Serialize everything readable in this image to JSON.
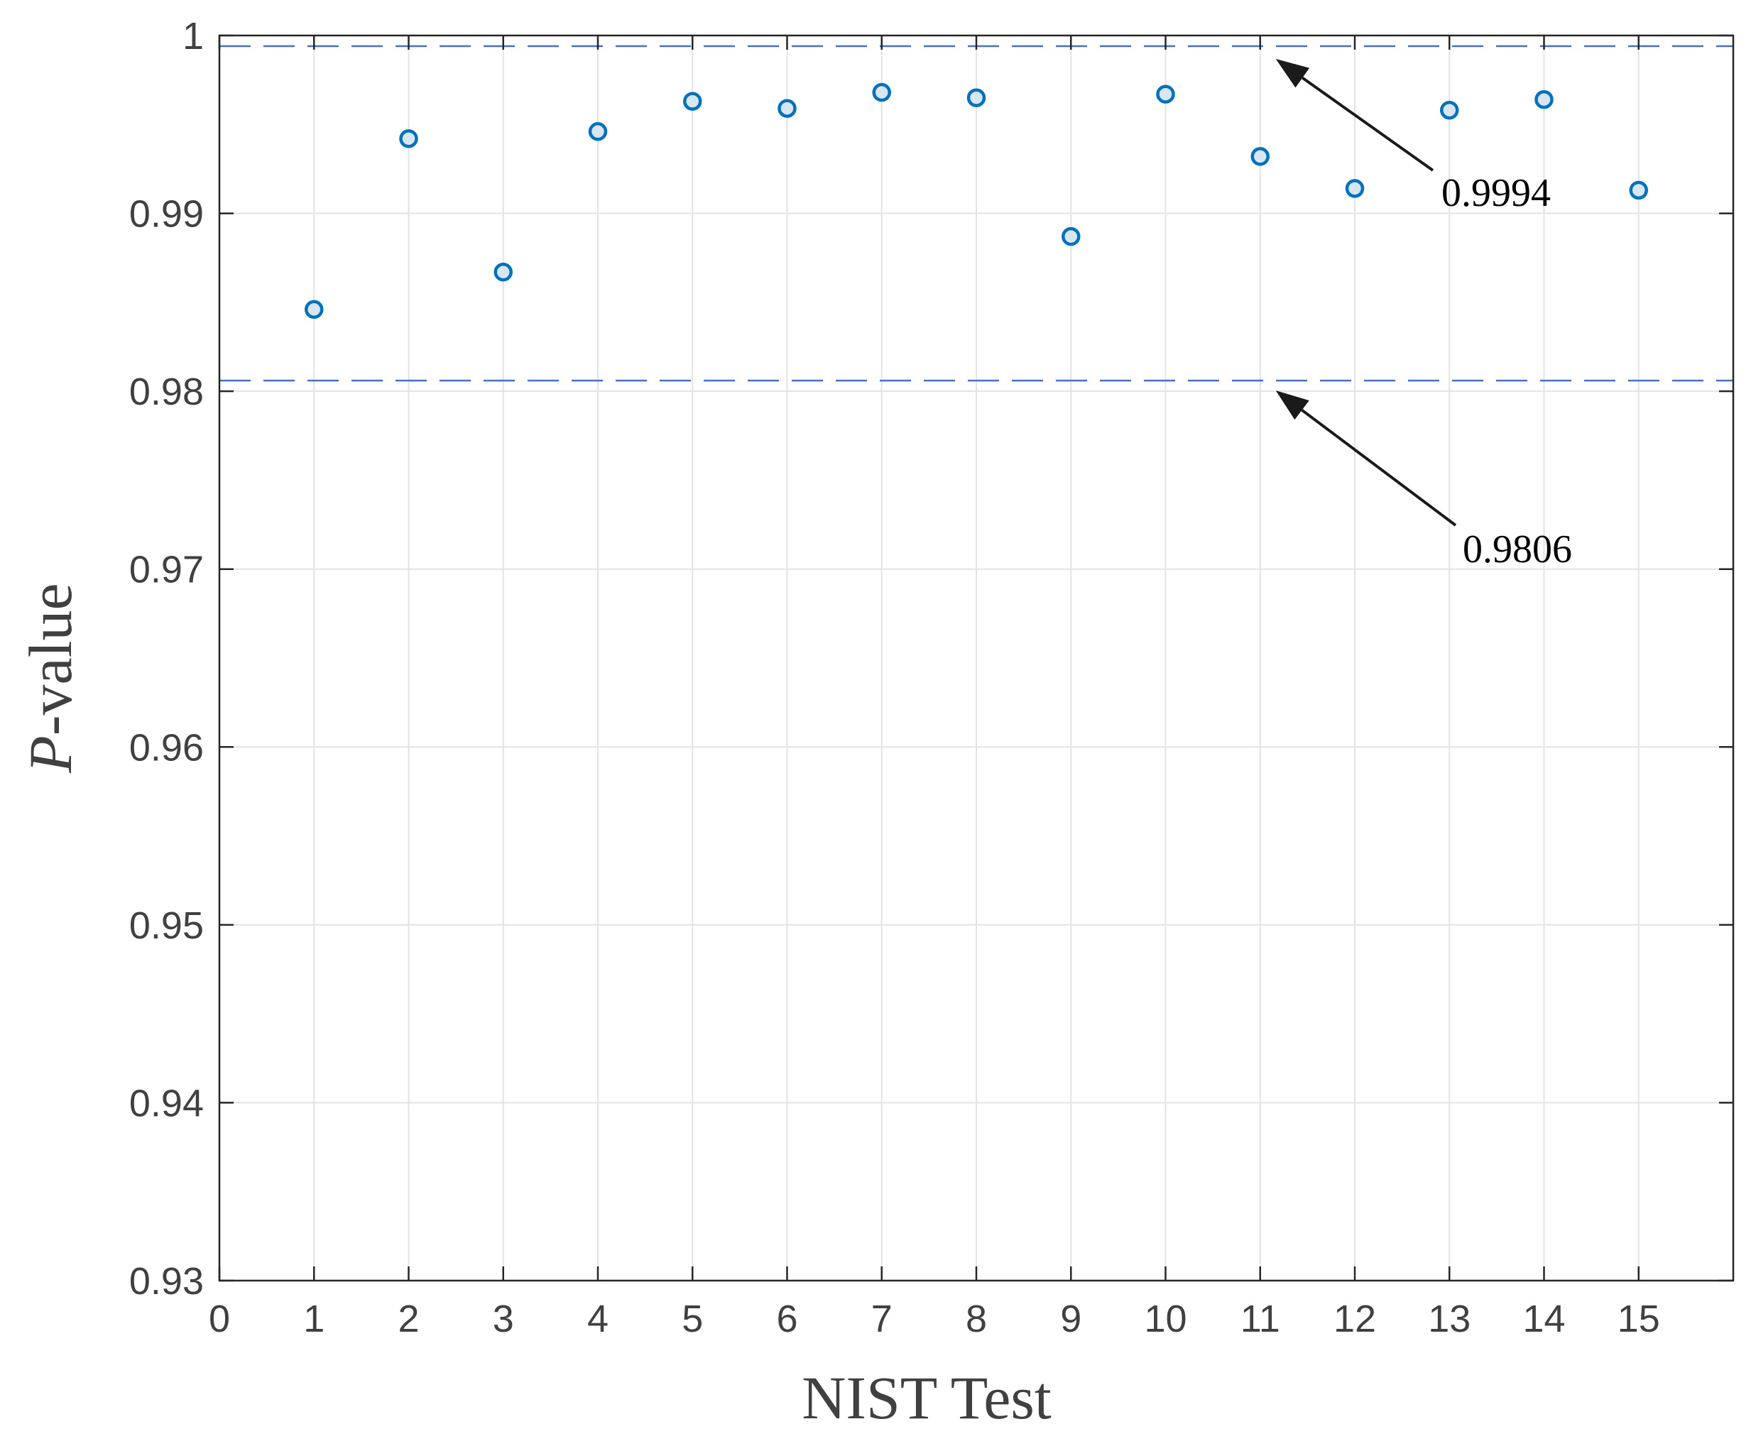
{
  "chart_data": {
    "type": "scatter",
    "title": "",
    "xlabel": "NIST Test",
    "ylabel_italic": "P",
    "ylabel_rest": "-value",
    "xlim": [
      0,
      16
    ],
    "ylim": [
      0.93,
      1.0
    ],
    "xticks": [
      0,
      1,
      2,
      3,
      4,
      5,
      6,
      7,
      8,
      9,
      10,
      11,
      12,
      13,
      14,
      15
    ],
    "xtick_labels": [
      "0",
      "1",
      "2",
      "3",
      "4",
      "5",
      "6",
      "7",
      "8",
      "9",
      "10",
      "11",
      "12",
      "13",
      "14",
      "15"
    ],
    "yticks": [
      0.93,
      0.94,
      0.95,
      0.96,
      0.97,
      0.98,
      0.99,
      1.0
    ],
    "ytick_labels": [
      "0.93",
      "0.94",
      "0.95",
      "0.96",
      "0.97",
      "0.98",
      "0.99",
      "1"
    ],
    "grid": true,
    "series": [
      {
        "name": "P-value",
        "marker": "circle",
        "x": [
          1,
          2,
          3,
          4,
          5,
          6,
          7,
          8,
          9,
          10,
          11,
          12,
          13,
          14,
          15
        ],
        "y": [
          0.9846,
          0.9942,
          0.9867,
          0.9946,
          0.9963,
          0.9959,
          0.9968,
          0.9965,
          0.9887,
          0.9967,
          0.9932,
          0.9914,
          0.9958,
          0.9964,
          0.9913
        ]
      }
    ],
    "reference_lines": [
      {
        "name": "upper-bound",
        "y": 0.9994,
        "style": "dashed",
        "label": "0.9994"
      },
      {
        "name": "lower-bound",
        "y": 0.9806,
        "style": "dashed",
        "label": "0.9806"
      }
    ],
    "colors": {
      "marker_edge": "#0072BD",
      "marker_fill": "#D7E6F2",
      "dashed_line": "#4A6FBF",
      "grid": "#E3E3E3",
      "axis": "#262626",
      "tick_text": "#404040",
      "arrow": "#1a1a1a"
    }
  }
}
